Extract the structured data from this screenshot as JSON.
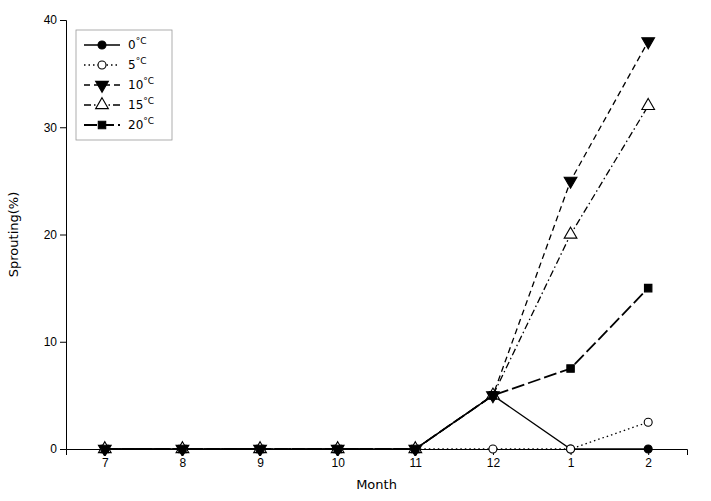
{
  "chart_data": {
    "type": "line",
    "categories": [
      "7",
      "8",
      "9",
      "10",
      "11",
      "12",
      "1",
      "2"
    ],
    "series": [
      {
        "name": "0°C",
        "color": "black",
        "marker": "circle",
        "line_style": "solid",
        "values": [
          0,
          0,
          0,
          0,
          0,
          5,
          0,
          0
        ]
      },
      {
        "name": "5°C",
        "color": "black",
        "marker": "circle-open",
        "line_style": "dotted",
        "values": [
          0,
          0,
          0,
          0,
          0,
          0,
          0,
          2.5
        ]
      },
      {
        "name": "10°C",
        "color": "black",
        "marker": "triangle-down",
        "line_style": "dashed",
        "values": [
          0,
          0,
          0,
          0,
          0,
          5,
          25,
          38
        ]
      },
      {
        "name": "15°C",
        "color": "black",
        "marker": "triangle-up-open",
        "line_style": "dashdot",
        "values": [
          0,
          0,
          0,
          0,
          0,
          5,
          20,
          32
        ]
      },
      {
        "name": "20°C",
        "color": "black",
        "marker": "square",
        "line_style": "longdash",
        "values": [
          0,
          0,
          0,
          0,
          0,
          5,
          7.5,
          15
        ]
      }
    ],
    "xlabel": "Month",
    "ylabel": "Sprouting(%)",
    "ylim": [
      0,
      40
    ],
    "yticks": [
      0,
      10,
      20,
      30,
      40
    ],
    "legend": "upper left"
  }
}
